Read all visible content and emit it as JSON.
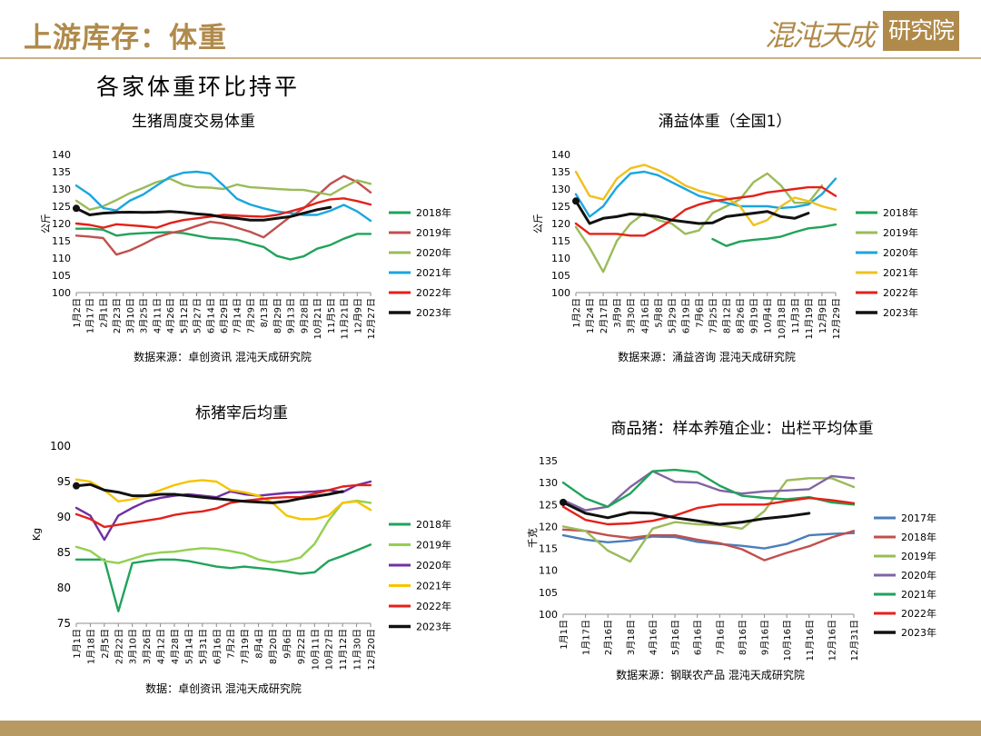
{
  "header": {
    "title": "上游库存：体重",
    "logo_text": "混沌天成",
    "logo_seal": "研究院"
  },
  "subtitle": "各家体重环比持平",
  "colors": {
    "brand": "#b08a4a",
    "footer": "#b69a62"
  },
  "chart_data": [
    {
      "type": "line",
      "title": "生猪周度交易体重",
      "ylabel": "公斤",
      "ylim": [
        100,
        140
      ],
      "yticks": [
        100,
        105,
        110,
        115,
        120,
        125,
        130,
        135,
        140
      ],
      "categories": [
        "1月2日",
        "1月17日",
        "2月1日",
        "2月23日",
        "3月10日",
        "3月25日",
        "4月11日",
        "4月26日",
        "5月12日",
        "5月27日",
        "6月14日",
        "6月29日",
        "7月14日",
        "7月29日",
        "8/13日",
        "8月29日",
        "9月13日",
        "9月28日",
        "10月21日",
        "11月5日",
        "11月21日",
        "12月9日",
        "12月27日"
      ],
      "source": "数据来源：卓创资讯  混沌天成研究院",
      "series": [
        {
          "name": "2018年",
          "color": "#1fa35a",
          "values": [
            118.5,
            118.5,
            118.2,
            116.5,
            117,
            117.2,
            117.4,
            117.5,
            117.2,
            116.5,
            115.8,
            115.6,
            115.3,
            114.2,
            113.2,
            110.6,
            109.6,
            110.5,
            112.7,
            113.8,
            115.6,
            117,
            117
          ]
        },
        {
          "name": "2019年",
          "color": "#c0504d",
          "values": [
            116.5,
            116.2,
            115.8,
            111,
            112.2,
            114,
            116,
            117.2,
            118,
            119.3,
            120.5,
            120,
            118.8,
            117.6,
            116,
            119,
            122,
            124.4,
            128,
            131.5,
            133.8,
            132,
            129
          ]
        },
        {
          "name": "2020年",
          "color": "#9bbb59",
          "values": [
            126.6,
            124,
            125,
            126.8,
            128.8,
            130.3,
            132,
            133,
            131.2,
            130.5,
            130.4,
            130,
            131.3,
            130.5,
            130.3,
            130,
            129.8,
            129.7,
            129,
            128.3,
            130.5,
            132.5,
            131.5
          ]
        },
        {
          "name": "2021年",
          "color": "#1aa6df",
          "values": [
            131,
            128.4,
            124.5,
            123.8,
            126.6,
            128.4,
            131,
            133.5,
            134.7,
            135,
            134.5,
            131,
            127.2,
            125.5,
            124.4,
            123.5,
            123,
            122.5,
            122.5,
            123.7,
            125.4,
            123.5,
            120.8
          ]
        },
        {
          "name": "2022年",
          "color": "#e32119",
          "values": [
            120,
            119.6,
            118.8,
            119.8,
            119.5,
            119.2,
            118.8,
            120.1,
            121,
            121.5,
            122,
            122.5,
            122.3,
            122.1,
            122,
            122.5,
            123.5,
            124.6,
            126,
            127,
            127.3,
            126.5,
            125.5
          ]
        },
        {
          "name": "2023年",
          "color": "#111111",
          "values": [
            124.4,
            122.5,
            123,
            123.2,
            123.3,
            123.2,
            123.3,
            123.5,
            123.2,
            122.8,
            122.5,
            121.8,
            121.5,
            121,
            121,
            121.5,
            122,
            123,
            124,
            124.7,
            null,
            null,
            null
          ]
        }
      ]
    },
    {
      "type": "line",
      "title": "涌益体重（全国1）",
      "ylabel": "公斤",
      "ylim": [
        100,
        140
      ],
      "yticks": [
        100,
        105,
        110,
        115,
        120,
        125,
        130,
        135,
        140
      ],
      "categories": [
        "1月2日",
        "1月24日",
        "2月17日",
        "3月9日",
        "3月30日",
        "4月16日",
        "5月8日",
        "5月29日",
        "6月19日",
        "7月6日",
        "7月25日",
        "8月12日",
        "8月26日",
        "9月19日",
        "10月4日",
        "10月18日",
        "11月3日",
        "11月19日",
        "12月9日",
        "12月29日"
      ],
      "source": "数据来源：涌益咨询  混沌天成研究院",
      "series": [
        {
          "name": "2018年",
          "color": "#1fa35a",
          "values": [
            null,
            null,
            null,
            null,
            null,
            null,
            null,
            null,
            null,
            null,
            115.5,
            113.5,
            114.8,
            115.3,
            115.6,
            116.2,
            117.5,
            118.6,
            119,
            119.7
          ]
        },
        {
          "name": "2019年",
          "color": "#9bbb59",
          "values": [
            119,
            113,
            106,
            115,
            120,
            123,
            121,
            120,
            117,
            118,
            123,
            125,
            127,
            132,
            134.5,
            131,
            126,
            126,
            131,
            null
          ]
        },
        {
          "name": "2020年",
          "color": "#1aa6df",
          "values": [
            128.5,
            122,
            125,
            130.5,
            134.5,
            135,
            134,
            132,
            130,
            128,
            127,
            126,
            125,
            125,
            125,
            124.5,
            124.8,
            125.5,
            128.5,
            133
          ]
        },
        {
          "name": "2021年",
          "color": "#f0c020",
          "values": [
            135,
            128,
            127,
            133,
            136,
            137,
            135.5,
            133.5,
            131,
            129.5,
            128.5,
            127.5,
            125,
            119.5,
            121,
            125,
            127.5,
            126.5,
            125,
            124
          ]
        },
        {
          "name": "2022年",
          "color": "#e32119",
          "values": [
            120,
            117,
            117,
            117,
            116.5,
            116.5,
            118.5,
            121,
            124,
            125.5,
            126.5,
            127,
            127.5,
            128,
            129,
            129.5,
            130,
            130.5,
            130.5,
            128
          ]
        },
        {
          "name": "2023年",
          "color": "#111111",
          "values": [
            126.5,
            120,
            121.5,
            122,
            122.8,
            122.5,
            122,
            121,
            120.5,
            120,
            120.2,
            122,
            122.5,
            123,
            123.5,
            122,
            121.5,
            123,
            null,
            null
          ]
        }
      ]
    },
    {
      "type": "line",
      "title": "标猪宰后均重",
      "ylabel": "Kg",
      "ylim": [
        75,
        100
      ],
      "yticks": [
        75,
        80,
        85,
        90,
        95,
        100
      ],
      "categories": [
        "1月1日",
        "1月18日",
        "2月5日",
        "2月22日",
        "3月10日",
        "3月26日",
        "4月12日",
        "4月28日",
        "5月14日",
        "5月31日",
        "6月16日",
        "7月2日",
        "7月19日",
        "8月4日",
        "8月20日",
        "9月6日",
        "9月22日",
        "10月11日",
        "10月27日",
        "11月12日",
        "11月30日",
        "12月20日"
      ],
      "source": "数据：卓创资讯  混沌天成研究院",
      "series": [
        {
          "name": "2018年",
          "color": "#1fa35a",
          "values": [
            84,
            84,
            84,
            76.7,
            83.5,
            83.8,
            84,
            84,
            83.8,
            83.4,
            83,
            82.8,
            83,
            82.8,
            82.6,
            82.3,
            82,
            82.2,
            83.8,
            84.5,
            85.3,
            86.1
          ]
        },
        {
          "name": "2019年",
          "color": "#92d050",
          "values": [
            85.8,
            85.2,
            83.8,
            83.5,
            84.1,
            84.7,
            85,
            85.1,
            85.4,
            85.6,
            85.5,
            85.2,
            84.8,
            84,
            83.6,
            83.8,
            84.3,
            86.2,
            89.5,
            92,
            92.3,
            92
          ]
        },
        {
          "name": "2020年",
          "color": "#7030a0",
          "values": [
            91.3,
            90.2,
            86.8,
            90.2,
            91.3,
            92.2,
            92.7,
            93,
            93.2,
            93,
            92.8,
            93.6,
            93.2,
            93,
            93.2,
            93.4,
            93.5,
            93.6,
            93.8,
            93.5,
            94.5,
            95
          ]
        },
        {
          "name": "2021年",
          "color": "#f6c400",
          "values": [
            95.3,
            95,
            93.8,
            92.2,
            92.5,
            93,
            93.8,
            94.5,
            95,
            95.2,
            95,
            93.8,
            93.5,
            93,
            92,
            90.2,
            89.7,
            89.7,
            90.2,
            92,
            92.2,
            91
          ]
        },
        {
          "name": "2022年",
          "color": "#e32119",
          "values": [
            90.4,
            89.7,
            88.6,
            88.9,
            89.2,
            89.5,
            89.8,
            90.3,
            90.6,
            90.8,
            91.2,
            92,
            92.3,
            92.5,
            92.7,
            92.8,
            92.8,
            93.3,
            93.8,
            94.3,
            94.5,
            94.5
          ]
        },
        {
          "name": "2023年",
          "color": "#111111",
          "values": [
            94.4,
            94.6,
            93.8,
            93.5,
            93,
            93,
            93.2,
            93.2,
            93,
            92.8,
            92.6,
            92.4,
            92.2,
            92.1,
            92,
            92.2,
            92.6,
            92.9,
            93.2,
            93.6,
            null,
            null
          ]
        }
      ]
    },
    {
      "type": "line",
      "title": "商品猪：样本养殖企业：出栏平均体重",
      "ylabel": "千克",
      "ylim": [
        100,
        135
      ],
      "yticks": [
        100,
        105,
        110,
        115,
        120,
        125,
        130,
        135
      ],
      "categories": [
        "1月1日",
        "1月17日",
        "2月16日",
        "3月18日",
        "4月16日",
        "5月16日",
        "6月16日",
        "7月16日",
        "8月16日",
        "9月16日",
        "10月16日",
        "11月16日",
        "12月16日",
        "12月31日"
      ],
      "source": "数据来源：钢联农产品  混沌天成研究院",
      "series": [
        {
          "name": "2017年",
          "color": "#4a7ebb",
          "values": [
            118,
            117,
            116.4,
            116.8,
            117.7,
            117.6,
            116.5,
            116,
            115.6,
            115,
            116,
            118,
            118.3,
            118.5
          ]
        },
        {
          "name": "2018年",
          "color": "#c0504d",
          "values": [
            119.3,
            119,
            118,
            117.4,
            118,
            118,
            117,
            116.2,
            114.8,
            112.3,
            114,
            115.5,
            117.5,
            119
          ]
        },
        {
          "name": "2019年",
          "color": "#9bbb59",
          "values": [
            120,
            119,
            114.5,
            112,
            119.5,
            121,
            120.5,
            120.3,
            119.5,
            123.5,
            130.5,
            131,
            131,
            129
          ]
        },
        {
          "name": "2020年",
          "color": "#8064a2",
          "values": [
            126,
            123.7,
            124.5,
            129,
            132.6,
            130.2,
            130,
            128.2,
            127.5,
            128,
            128.2,
            128.5,
            131.5,
            131
          ]
        },
        {
          "name": "2021年",
          "color": "#1fa35a",
          "values": [
            130,
            126.4,
            124.5,
            127.5,
            132.6,
            132.9,
            132.4,
            129.3,
            127,
            126.5,
            126.2,
            126.7,
            125.5,
            125
          ]
        },
        {
          "name": "2022年",
          "color": "#e32119",
          "values": [
            124.5,
            121.5,
            120.5,
            120.7,
            121.3,
            122.5,
            124.2,
            125,
            125,
            125,
            125.8,
            126.5,
            126,
            125.3
          ]
        },
        {
          "name": "2023年",
          "color": "#111111",
          "values": [
            125.5,
            123,
            122,
            123.2,
            123,
            122,
            121.3,
            120.5,
            121,
            121.8,
            122.3,
            123,
            null,
            null
          ]
        }
      ]
    }
  ]
}
